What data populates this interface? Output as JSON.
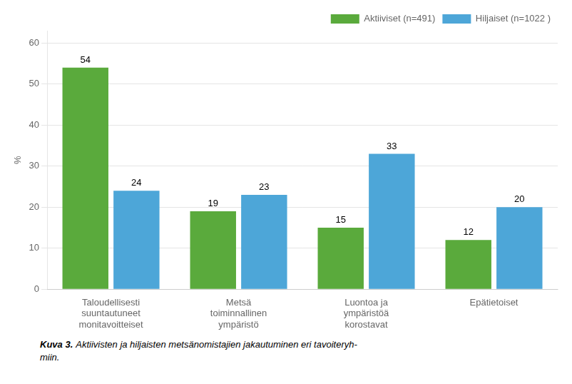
{
  "chart_data": {
    "type": "bar",
    "categories": [
      "Taloudellisesti\nsuuntautuneet\nmonitavoitteiset",
      "Metsä\ntoiminnallinen\nympäristö",
      "Luontoa ja\nympäristöä\nkorostavat",
      "Epätietoiset"
    ],
    "series": [
      {
        "name": "Aktiiviset (n=491)",
        "color": "#5aaa3c",
        "values": [
          54,
          19,
          15,
          12
        ]
      },
      {
        "name": "Hiljaiset (n=1022 )",
        "color": "#4da6d8",
        "values": [
          24,
          23,
          33,
          20
        ]
      }
    ],
    "ylabel": "%",
    "ylim": [
      0,
      63
    ],
    "yticks": [
      0,
      10,
      20,
      30,
      40,
      50,
      60
    ],
    "grid": true,
    "legend": "upper right",
    "data_labels": true,
    "annotations": [
      "Kuva 3.",
      "Aktiivisten ja hiljaisten metsänomistajien jakautuminen eri tavoiteryh-\nmiin."
    ]
  }
}
